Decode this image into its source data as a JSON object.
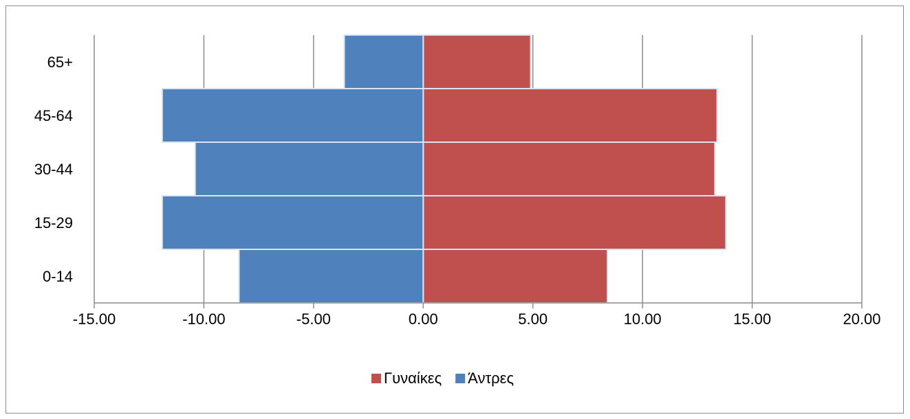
{
  "chart_data": {
    "type": "bar",
    "orientation": "horizontal",
    "title": "",
    "xlabel": "",
    "ylabel": "",
    "categories": [
      "0-14",
      "15-29",
      "30-44",
      "45-64",
      "65+"
    ],
    "series": [
      {
        "name": "Γυναίκες",
        "color": "#c0504d",
        "values": [
          8.4,
          13.8,
          13.3,
          13.4,
          4.9
        ]
      },
      {
        "name": "Άντρες",
        "color": "#4f81bd",
        "values": [
          -8.4,
          -11.9,
          -10.4,
          -11.9,
          -3.6
        ]
      }
    ],
    "xlim": [
      -15,
      20
    ],
    "x_ticks": [
      -15,
      -10,
      -5,
      0,
      5,
      10,
      15,
      20
    ],
    "x_tick_labels": [
      "-15.00",
      "-10.00",
      "-5.00",
      "0.00",
      "5.00",
      "10.00",
      "15.00",
      "20.00"
    ],
    "grid": "vertical",
    "legend_position": "bottom",
    "legend_order": [
      "Γυναίκες",
      "Άντρες"
    ],
    "gridline_color": "#8c8c8c",
    "axis_color": "#8c8c8c",
    "bar_outline_color": "#dbe5f1"
  }
}
